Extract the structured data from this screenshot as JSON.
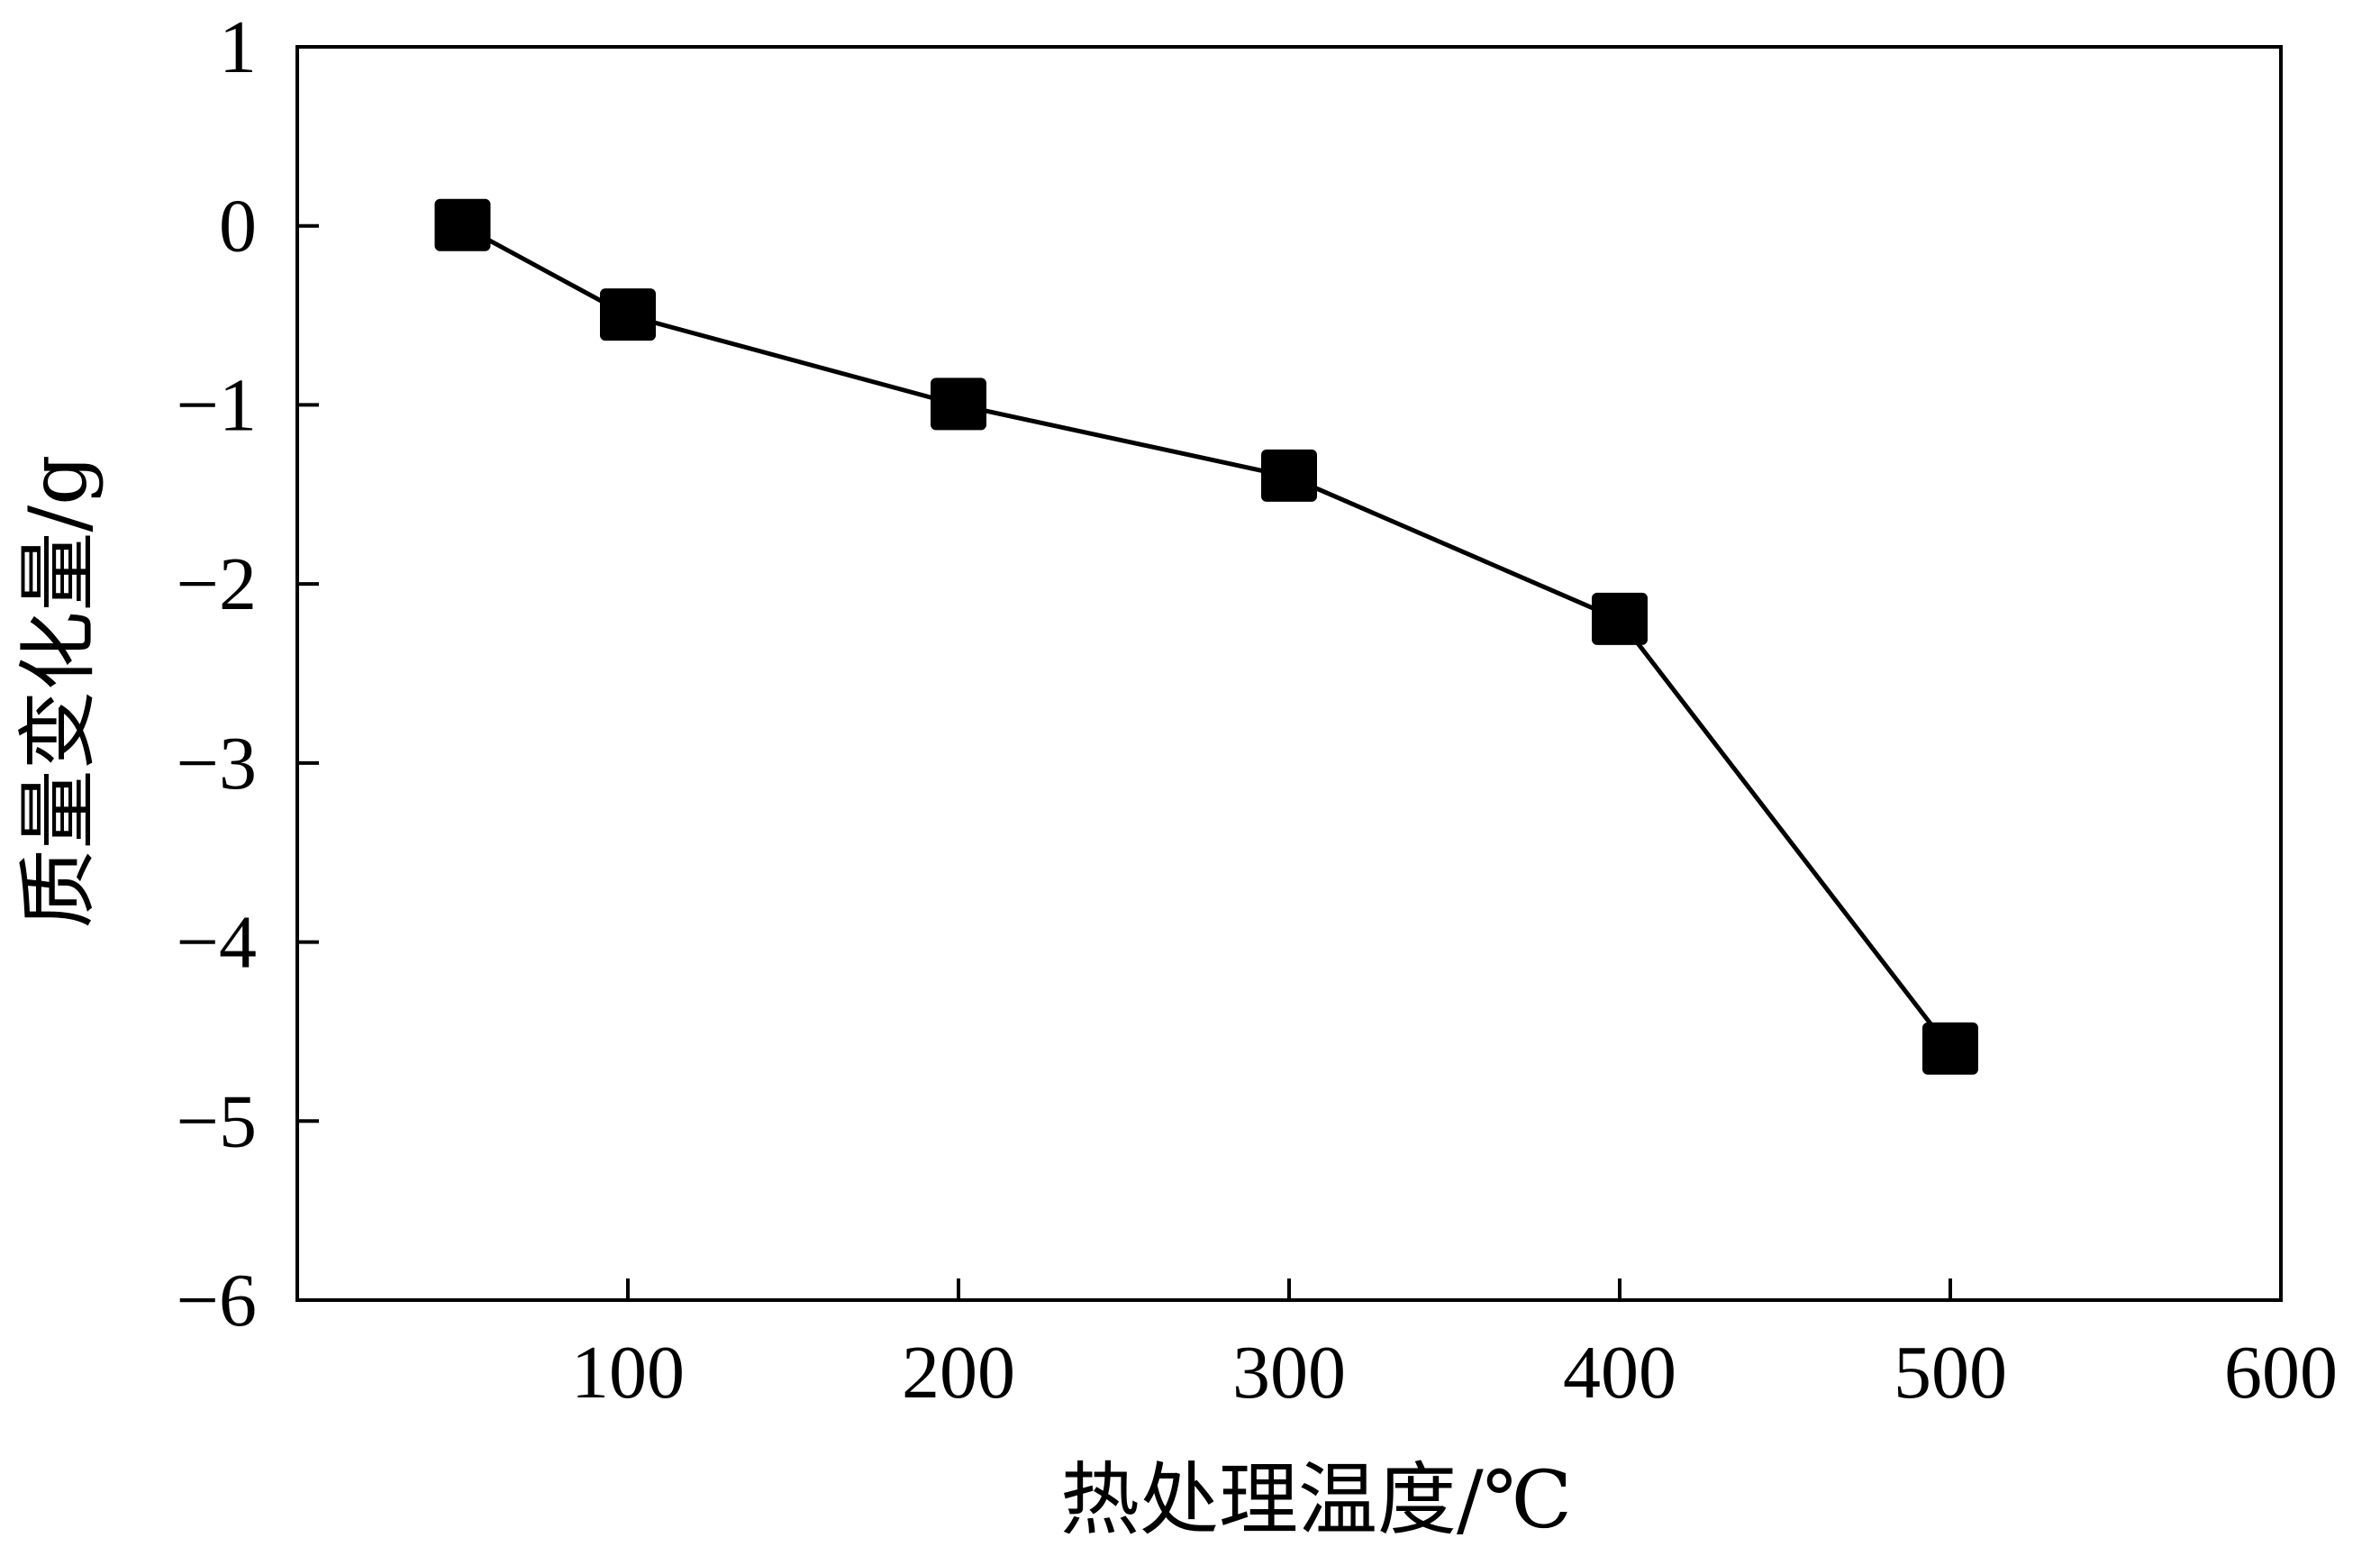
{
  "chart_data": {
    "type": "line",
    "title": "",
    "xlabel": "热处理温度/℃",
    "ylabel": "质量变化量/g",
    "xlim": [
      0,
      600
    ],
    "ylim": [
      -6,
      1
    ],
    "xticks": [
      100,
      200,
      300,
      400,
      500,
      600
    ],
    "yticks": [
      1,
      0,
      -1,
      -2,
      -3,
      -4,
      -5,
      -6
    ],
    "xtick_labels": [
      "100",
      "200",
      "300",
      "400",
      "500",
      "600"
    ],
    "ytick_labels": [
      "1",
      "0",
      "−1",
      "−2",
      "−3",
      "−4",
      "−5",
      "−6"
    ],
    "grid": false,
    "series": [
      {
        "marker": "square",
        "color": "#000000",
        "x": [
          50,
          100,
          200,
          300,
          400,
          500
        ],
        "y": [
          0,
          -0.5,
          -1.0,
          -1.4,
          -2.2,
          -4.6
        ]
      }
    ]
  }
}
